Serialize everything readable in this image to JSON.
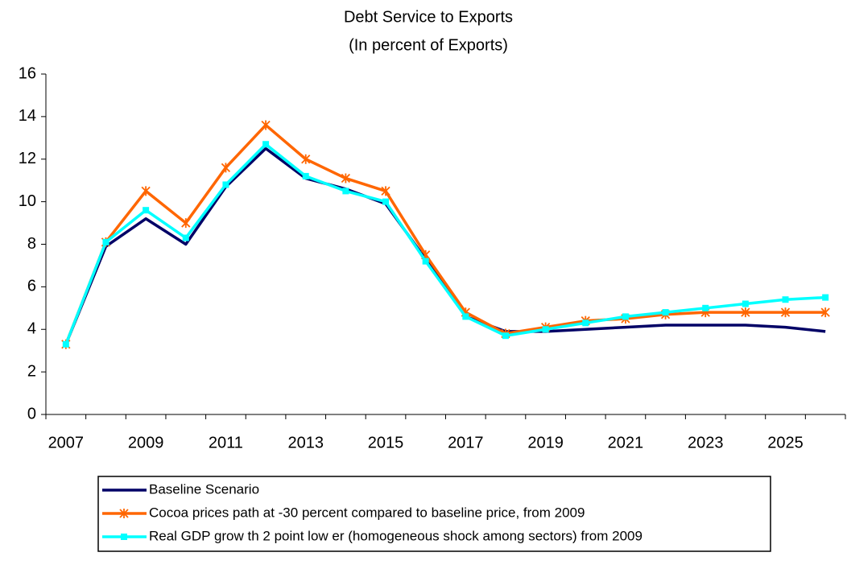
{
  "chart_data": {
    "type": "line",
    "title": "Debt Service to Exports",
    "subtitle": "(In percent of Exports)",
    "categories": [
      "2007",
      null,
      "2009",
      null,
      "2011",
      null,
      "2013",
      null,
      "2015",
      null,
      "2017",
      null,
      "2019",
      null,
      "2021",
      null,
      "2023",
      null,
      "2025",
      null
    ],
    "series": [
      {
        "name": "Baseline Scenario",
        "color": "#000066",
        "marker": "none",
        "values": [
          3.3,
          7.9,
          9.2,
          8.0,
          10.7,
          12.5,
          11.1,
          10.6,
          9.9,
          7.3,
          4.6,
          3.9,
          3.9,
          4.0,
          4.1,
          4.2,
          4.2,
          4.2,
          4.1,
          3.9
        ]
      },
      {
        "name": "Cocoa prices path at -30 percent compared to baseline price, from 2009",
        "color": "#ff6600",
        "marker": "asterisk",
        "values": [
          3.3,
          8.1,
          10.5,
          9.0,
          11.6,
          13.6,
          12.0,
          11.1,
          10.5,
          7.5,
          4.8,
          3.8,
          4.1,
          4.4,
          4.5,
          4.7,
          4.8,
          4.8,
          4.8,
          4.8
        ]
      },
      {
        "name": "Real GDP grow th 2 point low er (homogeneous shock among sectors) from 2009",
        "color": "#00ffff",
        "marker": "square",
        "values": [
          3.3,
          8.1,
          9.6,
          8.3,
          10.8,
          12.7,
          11.2,
          10.5,
          10.0,
          7.2,
          4.6,
          3.7,
          4.0,
          4.3,
          4.6,
          4.8,
          5.0,
          5.2,
          5.4,
          5.5
        ]
      }
    ],
    "ylim": [
      0,
      16
    ],
    "yticks": [
      0,
      2,
      4,
      6,
      8,
      10,
      12,
      14,
      16
    ],
    "grid": false
  }
}
